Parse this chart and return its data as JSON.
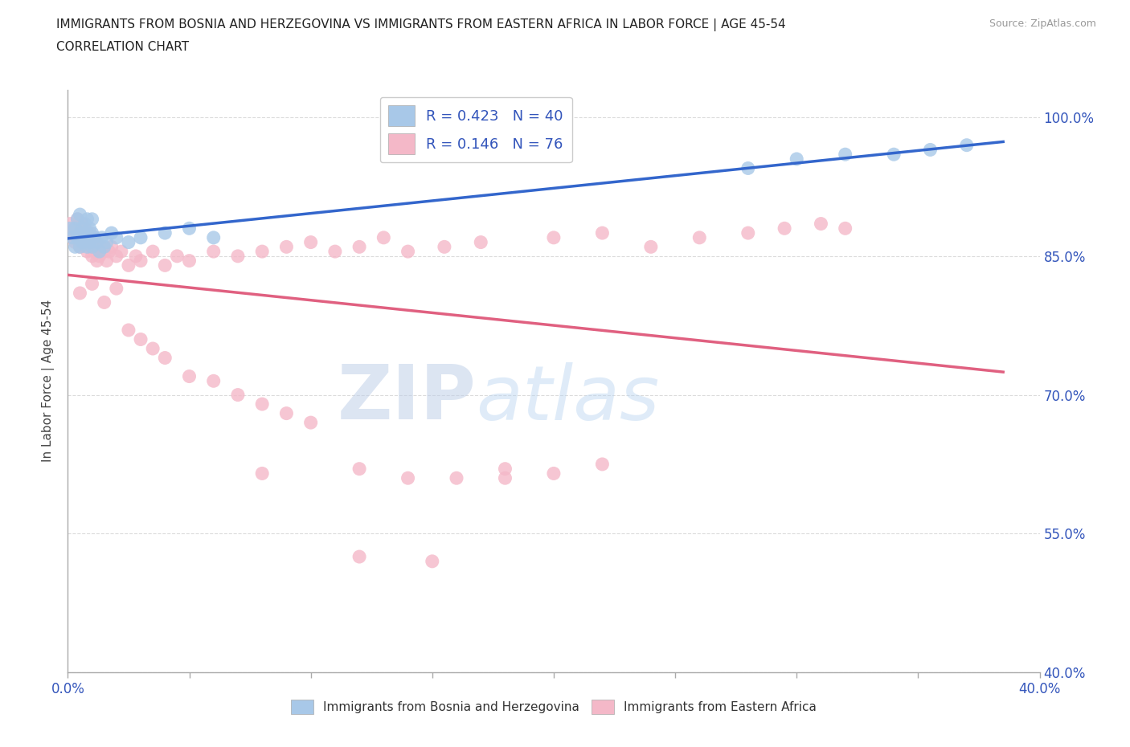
{
  "title_line1": "IMMIGRANTS FROM BOSNIA AND HERZEGOVINA VS IMMIGRANTS FROM EASTERN AFRICA IN LABOR FORCE | AGE 45-54",
  "title_line2": "CORRELATION CHART",
  "source_text": "Source: ZipAtlas.com",
  "ylabel": "In Labor Force | Age 45-54",
  "xlim": [
    0.0,
    0.4
  ],
  "ylim": [
    0.4,
    1.03
  ],
  "bosnia_R": 0.423,
  "bosnia_N": 40,
  "eastern_R": 0.146,
  "eastern_N": 76,
  "bosnia_color": "#a8c8e8",
  "eastern_color": "#f4b8c8",
  "bosnia_line_color": "#3366cc",
  "eastern_line_color": "#e06080",
  "legend_label_bosnia": "Immigrants from Bosnia and Herzegovina",
  "legend_label_eastern": "Immigrants from Eastern Africa",
  "watermark_zip": "ZIP",
  "watermark_atlas": "atlas",
  "background_color": "#ffffff",
  "grid_color": "#cccccc",
  "title_color": "#222222",
  "axis_label_color": "#444444",
  "tick_label_color": "#3355bb",
  "bosnia_x": [
    0.001,
    0.002,
    0.003,
    0.003,
    0.004,
    0.004,
    0.005,
    0.005,
    0.005,
    0.006,
    0.006,
    0.007,
    0.007,
    0.008,
    0.008,
    0.008,
    0.009,
    0.009,
    0.01,
    0.01,
    0.01,
    0.011,
    0.012,
    0.013,
    0.014,
    0.015,
    0.016,
    0.018,
    0.02,
    0.025,
    0.03,
    0.04,
    0.05,
    0.06,
    0.28,
    0.3,
    0.32,
    0.34,
    0.355,
    0.37
  ],
  "bosnia_y": [
    0.88,
    0.87,
    0.86,
    0.88,
    0.87,
    0.89,
    0.875,
    0.86,
    0.895,
    0.865,
    0.88,
    0.87,
    0.885,
    0.86,
    0.875,
    0.89,
    0.865,
    0.88,
    0.86,
    0.875,
    0.89,
    0.87,
    0.865,
    0.855,
    0.87,
    0.86,
    0.865,
    0.875,
    0.87,
    0.865,
    0.87,
    0.875,
    0.88,
    0.87,
    0.945,
    0.955,
    0.96,
    0.96,
    0.965,
    0.97
  ],
  "eastern_x": [
    0.001,
    0.002,
    0.003,
    0.003,
    0.004,
    0.004,
    0.005,
    0.005,
    0.006,
    0.006,
    0.007,
    0.007,
    0.008,
    0.008,
    0.009,
    0.009,
    0.01,
    0.01,
    0.011,
    0.011,
    0.012,
    0.012,
    0.013,
    0.014,
    0.015,
    0.016,
    0.017,
    0.018,
    0.02,
    0.022,
    0.025,
    0.028,
    0.03,
    0.035,
    0.04,
    0.045,
    0.05,
    0.06,
    0.07,
    0.08,
    0.09,
    0.1,
    0.11,
    0.12,
    0.13,
    0.14,
    0.155,
    0.17,
    0.2,
    0.22,
    0.24,
    0.26,
    0.28,
    0.295,
    0.31,
    0.32,
    0.005,
    0.01,
    0.015,
    0.02,
    0.025,
    0.03,
    0.035,
    0.04,
    0.05,
    0.06,
    0.07,
    0.08,
    0.09,
    0.1,
    0.12,
    0.14,
    0.16,
    0.18,
    0.2,
    0.22
  ],
  "eastern_y": [
    0.885,
    0.875,
    0.865,
    0.88,
    0.87,
    0.89,
    0.86,
    0.875,
    0.87,
    0.885,
    0.865,
    0.88,
    0.855,
    0.87,
    0.86,
    0.875,
    0.85,
    0.865,
    0.855,
    0.87,
    0.845,
    0.86,
    0.85,
    0.86,
    0.855,
    0.845,
    0.855,
    0.86,
    0.85,
    0.855,
    0.84,
    0.85,
    0.845,
    0.855,
    0.84,
    0.85,
    0.845,
    0.855,
    0.85,
    0.855,
    0.86,
    0.865,
    0.855,
    0.86,
    0.87,
    0.855,
    0.86,
    0.865,
    0.87,
    0.875,
    0.86,
    0.87,
    0.875,
    0.88,
    0.885,
    0.88,
    0.81,
    0.82,
    0.8,
    0.815,
    0.77,
    0.76,
    0.75,
    0.74,
    0.72,
    0.715,
    0.7,
    0.69,
    0.68,
    0.67,
    0.62,
    0.61,
    0.61,
    0.62,
    0.615,
    0.625
  ]
}
